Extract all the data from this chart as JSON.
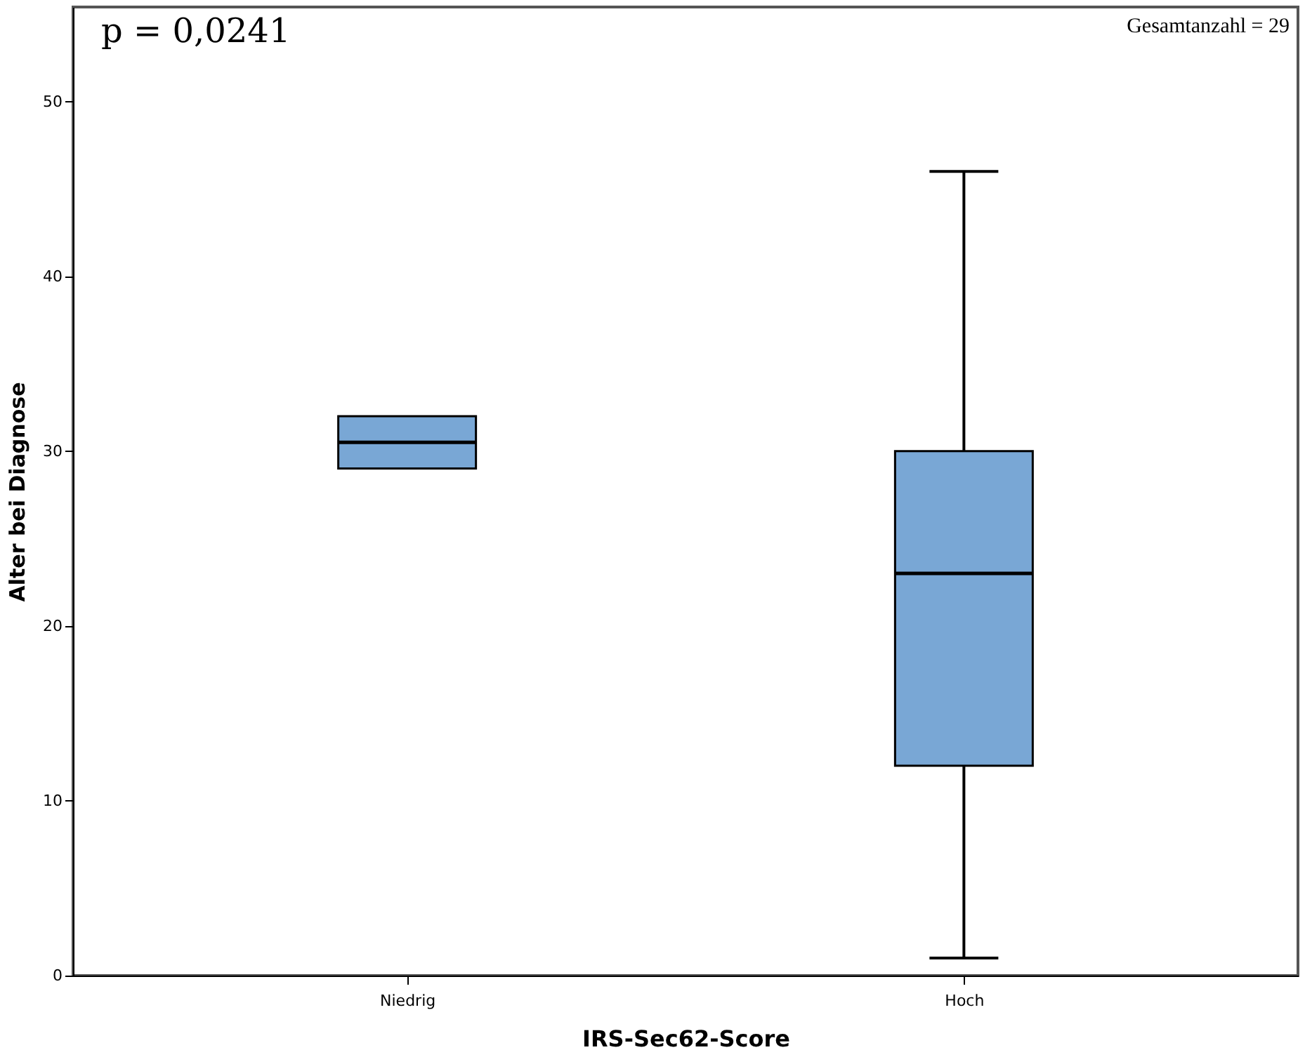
{
  "chart_data": {
    "type": "box",
    "xlabel": "IRS-Sec62-Score",
    "ylabel": "Alter bei Diagnose",
    "categories": [
      "Niedrig",
      "Hoch"
    ],
    "boxes": [
      {
        "low": 29,
        "q1": 29,
        "median": 30.5,
        "q3": 32,
        "high": 32
      },
      {
        "low": 1,
        "q1": 12,
        "median": 23,
        "q3": 30,
        "high": 46
      }
    ],
    "color": "#79a7d5",
    "ylim": [
      0,
      55.4
    ],
    "yticks": [
      0,
      10,
      20,
      30,
      40,
      50
    ],
    "grid": false,
    "annotations": [
      "p = 0,0241",
      "Gesamtanzahl = 29"
    ]
  }
}
